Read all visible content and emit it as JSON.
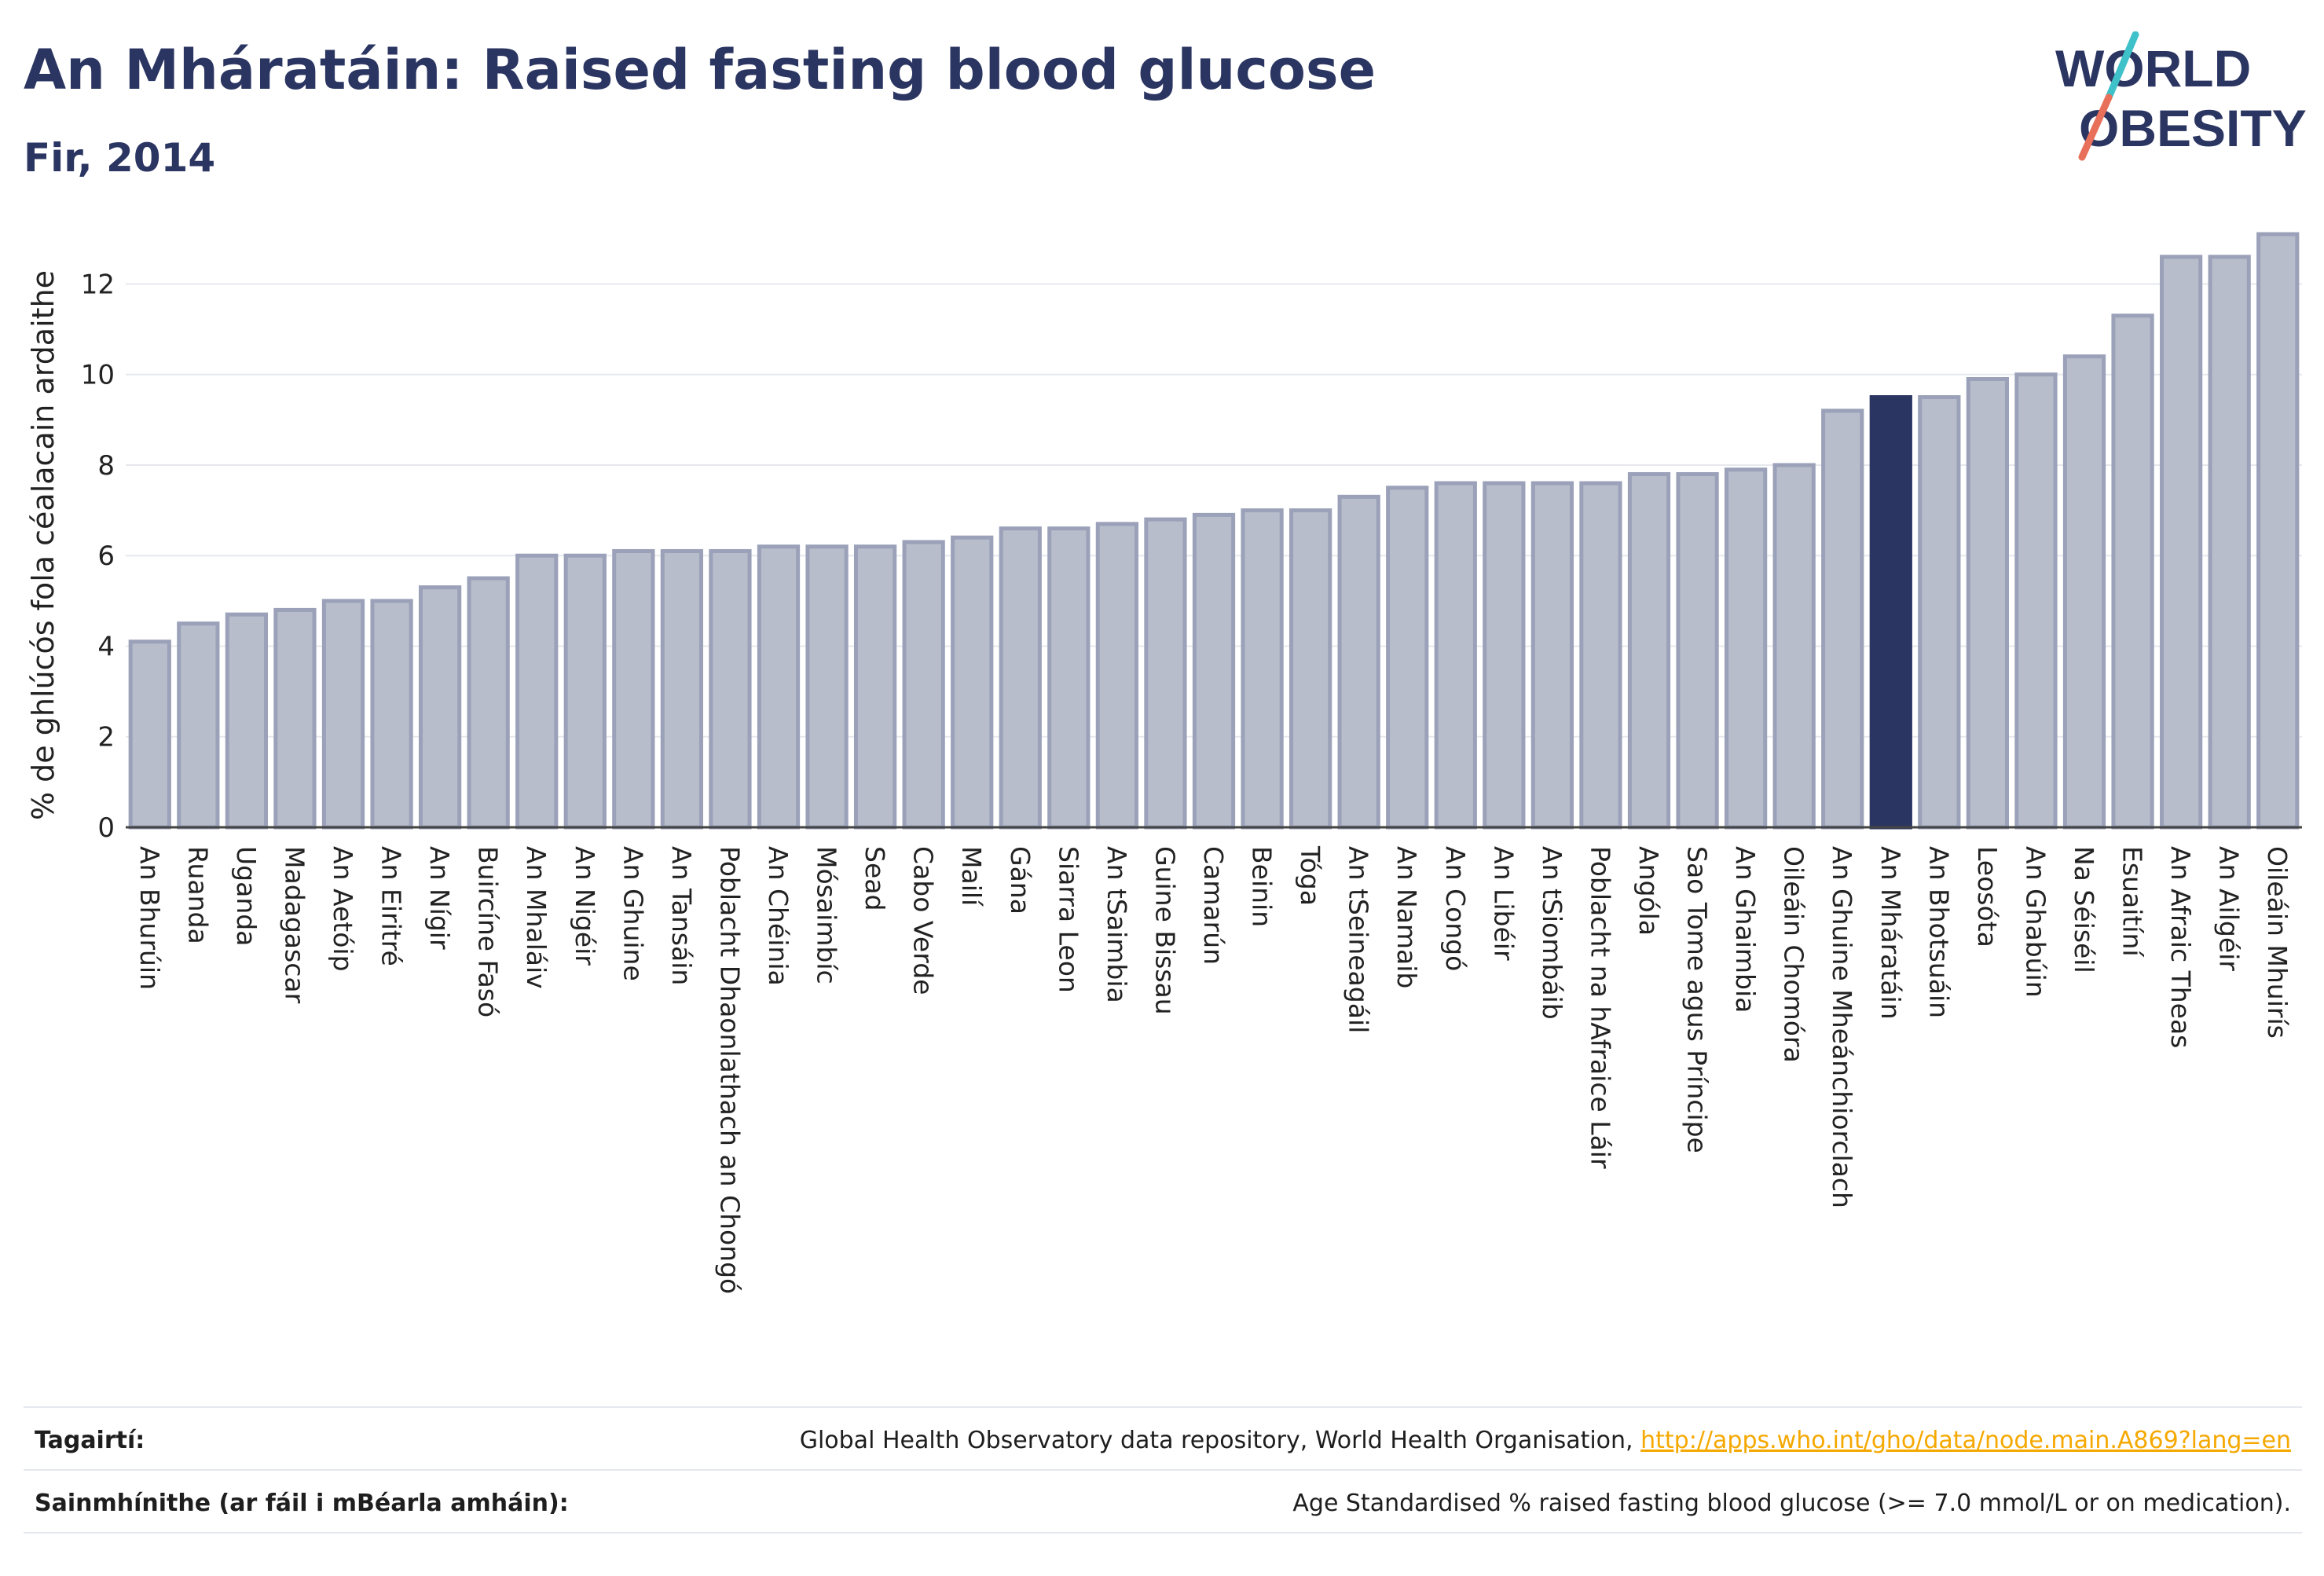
{
  "header": {
    "title": "An Mháratáin: Raised fasting blood glucose",
    "subtitle": "Fir, 2014"
  },
  "logo": {
    "line1": "WORLD",
    "line2": "OBESITY"
  },
  "colors": {
    "bar": "#b8bdcc",
    "bar_stroke": "#9aa1b8",
    "highlight": "#2b3561",
    "text": "#2b3561"
  },
  "chart_data": {
    "type": "bar",
    "ylabel": "% de ghlúcós fola céalacain ardaithe",
    "ylim": [
      0,
      13.5
    ],
    "yticks": [
      0,
      2,
      4,
      6,
      8,
      10,
      12
    ],
    "grid": true,
    "highlight": "An Mháratáin",
    "categories": [
      "An Bhurúin",
      "Ruanda",
      "Uganda",
      "Madagascar",
      "An Aetóip",
      "An Eiritré",
      "An Nígir",
      "Buircíne Fasó",
      "An Mhaláiv",
      "An Nigéir",
      "An Ghuine",
      "An Tansáin",
      "Poblacht Dhaonlathach an Chongó",
      "An Chéinia",
      "Mósaimbíc",
      "Sead",
      "Cabo Verde",
      "Mailí",
      "Gána",
      "Siarra Leon",
      "An tSaimbia",
      "Guine Bissau",
      "Camarún",
      "Beinin",
      "Tóga",
      "An tSeineagáil",
      "An Namaib",
      "An Congó",
      "An Libéir",
      "An tSiombáib",
      "Poblacht na hAfraice Láir",
      "Angóla",
      "Sao Tome agus Príncipe",
      "An Ghaimbia",
      "Oileáin Chomóra",
      "An Ghuine Mheánchiorclach",
      "An Mháratáin",
      "An Bhotsuáin",
      "Leosóta",
      "An Ghabúin",
      "Na Séiséil",
      "Esuaitíní",
      "An Afraic Theas",
      "An Ailgéir",
      "Oileáin Mhuirís"
    ],
    "values": [
      4.1,
      4.5,
      4.7,
      4.8,
      5.0,
      5.0,
      5.3,
      5.5,
      6.0,
      6.0,
      6.1,
      6.1,
      6.1,
      6.2,
      6.2,
      6.2,
      6.3,
      6.4,
      6.6,
      6.6,
      6.7,
      6.8,
      6.9,
      7.0,
      7.0,
      7.3,
      7.5,
      7.6,
      7.6,
      7.6,
      7.6,
      7.8,
      7.8,
      7.9,
      8.0,
      9.2,
      9.5,
      9.5,
      9.9,
      10.0,
      10.4,
      11.3,
      12.6,
      12.6,
      13.1
    ]
  },
  "footer": {
    "ref_label": "Tagairtí:",
    "ref_text": "Global Health Observatory data repository, World Health Organisation,",
    "ref_link": "http://apps.who.int/gho/data/node.main.A869?lang=en",
    "def_label": "Sainmhínithe (ar fáil i mBéarla amháin):",
    "def_text": "Age Standardised % raised fasting blood glucose (>= 7.0 mmol/L or on medication)."
  }
}
